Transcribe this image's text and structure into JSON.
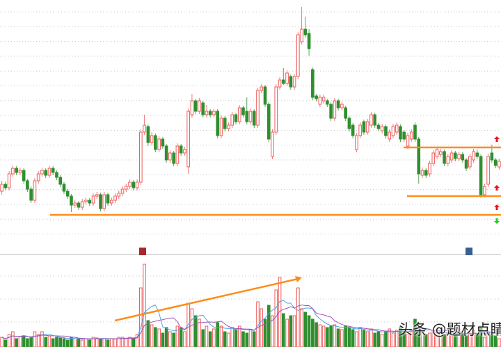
{
  "watermark": "头条 @题材点睛",
  "colors": {
    "up": "#f05a5a",
    "down": "#2f8f2f",
    "ma5": "#4aa3e8",
    "ma10": "#a050b8",
    "annotation": "#ff8c1a",
    "arrow_up": "#e8141e",
    "arrow_down": "#22cc22",
    "grid": "#c8c8c8"
  },
  "markers": [
    {
      "icon": "limit-up-badge-icon",
      "color": "#a8282e"
    },
    {
      "icon": "financial-report-badge-icon",
      "color": "#3a5f8f"
    }
  ],
  "side_arrows": [
    {
      "icon": "arrow-up-icon"
    },
    {
      "icon": "arrow-up-icon"
    },
    {
      "icon": "arrow-up-icon"
    },
    {
      "icon": "arrow-down-icon"
    }
  ],
  "chart_data": [
    {
      "type": "candlestick",
      "title": "",
      "grid": true,
      "ohlc_fields": [
        "open",
        "high",
        "low",
        "close"
      ],
      "candles": [
        [
          85,
          100,
          80,
          95
        ],
        [
          95,
          99,
          86,
          90
        ],
        [
          90,
          114,
          86,
          110
        ],
        [
          110,
          122,
          106,
          118
        ],
        [
          118,
          121,
          108,
          112
        ],
        [
          112,
          119,
          108,
          115
        ],
        [
          115,
          118,
          96,
          100
        ],
        [
          100,
          103,
          84,
          88
        ],
        [
          88,
          92,
          68,
          72
        ],
        [
          72,
          104,
          68,
          100
        ],
        [
          100,
          114,
          96,
          110
        ],
        [
          110,
          119,
          106,
          115
        ],
        [
          115,
          118,
          104,
          108
        ],
        [
          108,
          122,
          104,
          118
        ],
        [
          118,
          121,
          108,
          112
        ],
        [
          112,
          115,
          101,
          105
        ],
        [
          105,
          108,
          91,
          95
        ],
        [
          95,
          98,
          81,
          85
        ],
        [
          85,
          88,
          74,
          78
        ],
        [
          78,
          81,
          55,
          65
        ],
        [
          65,
          72,
          61,
          68
        ],
        [
          68,
          71,
          58,
          62
        ],
        [
          62,
          74,
          58,
          70
        ],
        [
          70,
          76,
          66,
          72
        ],
        [
          72,
          75,
          64,
          68
        ],
        [
          68,
          82,
          64,
          78
        ],
        [
          78,
          84,
          74,
          80
        ],
        [
          80,
          83,
          56,
          60
        ],
        [
          60,
          84,
          56,
          80
        ],
        [
          80,
          83,
          64,
          68
        ],
        [
          68,
          76,
          64,
          72
        ],
        [
          72,
          82,
          68,
          78
        ],
        [
          78,
          86,
          74,
          82
        ],
        [
          82,
          92,
          78,
          88
        ],
        [
          88,
          96,
          84,
          92
        ],
        [
          92,
          102,
          88,
          98
        ],
        [
          98,
          101,
          86,
          90
        ],
        [
          90,
          102,
          86,
          98
        ],
        [
          98,
          174,
          94,
          170
        ],
        [
          170,
          195,
          166,
          180
        ],
        [
          178,
          181,
          150,
          155
        ],
        [
          155,
          170,
          151,
          165
        ],
        [
          165,
          168,
          141,
          145
        ],
        [
          145,
          164,
          141,
          160
        ],
        [
          160,
          163,
          146,
          150
        ],
        [
          150,
          153,
          126,
          130
        ],
        [
          130,
          144,
          126,
          140
        ],
        [
          140,
          143,
          121,
          125
        ],
        [
          125,
          154,
          121,
          150
        ],
        [
          150,
          153,
          136,
          140
        ],
        [
          140,
          149,
          136,
          145
        ],
        [
          120,
          204,
          110,
          200
        ],
        [
          195,
          225,
          191,
          215
        ],
        [
          215,
          218,
          196,
          200
        ],
        [
          200,
          219,
          196,
          215
        ],
        [
          212,
          215,
          191,
          195
        ],
        [
          195,
          209,
          191,
          200
        ],
        [
          200,
          203,
          191,
          195
        ],
        [
          195,
          204,
          191,
          200
        ],
        [
          200,
          203,
          161,
          165
        ],
        [
          165,
          194,
          161,
          190
        ],
        [
          190,
          193,
          171,
          175
        ],
        [
          175,
          184,
          171,
          180
        ],
        [
          180,
          199,
          176,
          195
        ],
        [
          195,
          198,
          181,
          185
        ],
        [
          185,
          209,
          181,
          205
        ],
        [
          205,
          208,
          191,
          195
        ],
        [
          200,
          220,
          181,
          185
        ],
        [
          185,
          204,
          181,
          200
        ],
        [
          200,
          203,
          176,
          180
        ],
        [
          180,
          234,
          176,
          230
        ],
        [
          230,
          239,
          226,
          235
        ],
        [
          235,
          238,
          206,
          210
        ],
        [
          210,
          213,
          156,
          160
        ],
        [
          135,
          174,
          131,
          170
        ],
        [
          170,
          239,
          166,
          235
        ],
        [
          235,
          249,
          231,
          245
        ],
        [
          245,
          262,
          238,
          240
        ],
        [
          240,
          259,
          236,
          255
        ],
        [
          250,
          253,
          231,
          235
        ],
        [
          235,
          254,
          231,
          250
        ],
        [
          250,
          314,
          246,
          310
        ],
        [
          300,
          350,
          296,
          318
        ],
        [
          318,
          336,
          306,
          310
        ],
        [
          312,
          318,
          280,
          290
        ],
        [
          260,
          263,
          216,
          220
        ],
        [
          222,
          225,
          214,
          218
        ],
        [
          210,
          224,
          206,
          220
        ],
        [
          215,
          224,
          211,
          220
        ],
        [
          215,
          218,
          206,
          210
        ],
        [
          210,
          213,
          186,
          190
        ],
        [
          190,
          219,
          186,
          215
        ],
        [
          215,
          218,
          201,
          205
        ],
        [
          205,
          214,
          201,
          210
        ],
        [
          205,
          208,
          186,
          190
        ],
        [
          190,
          193,
          171,
          175
        ],
        [
          180,
          183,
          161,
          165
        ],
        [
          145,
          169,
          141,
          165
        ],
        [
          165,
          184,
          161,
          180
        ],
        [
          185,
          188,
          166,
          170
        ],
        [
          170,
          189,
          166,
          185
        ],
        [
          180,
          199,
          176,
          195
        ],
        [
          195,
          198,
          176,
          180
        ],
        [
          180,
          183,
          171,
          175
        ],
        [
          172,
          182,
          168,
          178
        ],
        [
          178,
          181,
          161,
          165
        ],
        [
          160,
          174,
          156,
          170
        ],
        [
          165,
          182,
          161,
          178
        ],
        [
          170,
          184,
          166,
          180
        ],
        [
          178,
          181,
          156,
          160
        ],
        [
          170,
          173,
          156,
          160
        ],
        [
          150,
          169,
          146,
          165
        ],
        [
          160,
          174,
          156,
          170
        ],
        [
          180,
          184,
          156,
          160
        ],
        [
          160,
          163,
          96,
          110
        ],
        [
          108,
          119,
          104,
          115
        ],
        [
          115,
          118,
          104,
          108
        ],
        [
          110,
          129,
          106,
          125
        ],
        [
          125,
          144,
          121,
          140
        ],
        [
          135,
          149,
          131,
          145
        ],
        [
          138,
          146,
          134,
          142
        ],
        [
          142,
          145,
          121,
          125
        ],
        [
          125,
          139,
          121,
          135
        ],
        [
          130,
          144,
          126,
          140
        ],
        [
          140,
          143,
          128,
          132
        ],
        [
          132,
          142,
          128,
          138
        ],
        [
          138,
          141,
          126,
          130
        ],
        [
          130,
          133,
          114,
          118
        ],
        [
          120,
          139,
          116,
          135
        ],
        [
          130,
          146,
          126,
          142
        ],
        [
          140,
          145,
          131,
          135
        ],
        [
          135,
          138,
          76,
          80
        ],
        [
          80,
          96,
          76,
          92
        ],
        [
          95,
          139,
          91,
          135
        ],
        [
          140,
          152,
          126,
          130
        ],
        [
          130,
          133,
          118,
          122
        ],
        [
          120,
          132,
          116,
          128
        ]
      ],
      "annotations": [
        {
          "type": "hline",
          "label": ""
        },
        {
          "type": "hline",
          "label": ""
        },
        {
          "type": "hline",
          "label": ""
        }
      ]
    },
    {
      "type": "bar",
      "title": "",
      "grid": true,
      "volume": [
        14,
        10,
        18,
        22,
        12,
        15,
        16,
        12,
        14,
        22,
        18,
        22,
        14,
        16,
        12,
        14,
        13,
        12,
        10,
        14,
        12,
        12,
        10,
        12,
        10,
        14,
        13,
        12,
        12,
        10,
        12,
        12,
        14,
        14,
        12,
        14,
        12,
        18,
        85,
        119,
        38,
        32,
        28,
        26,
        20,
        28,
        22,
        20,
        30,
        28,
        22,
        63,
        55,
        45,
        40,
        25,
        30,
        22,
        26,
        35,
        30,
        22,
        20,
        28,
        25,
        30,
        22,
        20,
        25,
        22,
        65,
        55,
        40,
        60,
        45,
        82,
        100,
        48,
        40,
        45,
        45,
        85,
        55,
        50,
        45,
        40,
        35,
        32,
        30,
        28,
        30,
        32,
        26,
        25,
        30,
        28,
        25,
        22,
        28,
        24,
        22,
        26,
        20,
        22,
        18,
        22,
        26,
        20,
        24,
        28,
        22,
        18,
        25,
        40,
        28,
        22,
        18,
        20,
        24,
        20,
        22,
        18,
        20,
        16,
        18,
        22,
        20,
        16,
        20,
        24,
        18,
        30,
        14,
        22,
        18,
        16,
        12
      ],
      "moving_averages": [
        {
          "period": 5
        },
        {
          "period": 10
        }
      ],
      "annotations": [
        {
          "type": "trend-arrow",
          "label": ""
        }
      ]
    }
  ]
}
